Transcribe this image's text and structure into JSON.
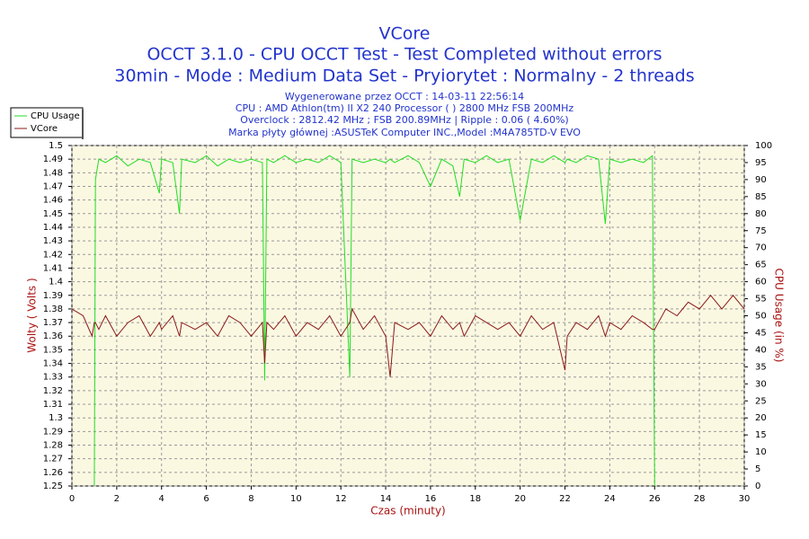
{
  "chart_data": {
    "type": "line",
    "title": "VCore",
    "subtitle": [
      "OCCT 3.1.0 - CPU OCCT Test - Test Completed without errors",
      "30min - Mode : Medium Data Set - Pryiorytet : Normalny - 2 threads"
    ],
    "info": [
      "Wygenerowane przez OCCT : 14-03-11 22:56:14",
      "CPU : AMD Athlon(tm) II X2 240 Processor (  ) 2800 MHz FSB 200MHz",
      "Overclock : 2812.42 MHz ; FSB 200.89MHz | Ripple : 0.06 ( 4.60%)",
      "Marka płyty głównej :ASUSTeK Computer INC.,Model :M4A785TD-V EVO"
    ],
    "xlabel": "Czas (minuty)",
    "ylabel": "Wolty ( Volts )",
    "y2label": "CPU Usage (in %)",
    "legend": "top-left",
    "grid": true,
    "xlim": [
      0,
      30
    ],
    "xticks": [
      0,
      2,
      4,
      6,
      8,
      10,
      12,
      14,
      16,
      18,
      20,
      22,
      24,
      26,
      28,
      30
    ],
    "ylim": [
      1.25,
      1.5
    ],
    "yticks": [
      1.25,
      1.26,
      1.27,
      1.28,
      1.29,
      1.3,
      1.31,
      1.32,
      1.33,
      1.34,
      1.35,
      1.36,
      1.37,
      1.38,
      1.39,
      1.4,
      1.41,
      1.42,
      1.43,
      1.44,
      1.45,
      1.46,
      1.47,
      1.48,
      1.49,
      1.5
    ],
    "y2lim": [
      0,
      100
    ],
    "y2ticks": [
      0,
      5,
      10,
      15,
      20,
      25,
      30,
      35,
      40,
      45,
      50,
      55,
      60,
      65,
      70,
      75,
      80,
      85,
      90,
      95,
      100
    ],
    "x": [
      0,
      0.5,
      0.9,
      1.0,
      1.05,
      1.2,
      1.5,
      2,
      2.5,
      3,
      3.5,
      3.9,
      4,
      4.5,
      4.8,
      4.9,
      5.5,
      6,
      6.5,
      7,
      7.5,
      8,
      8.5,
      8.6,
      8.7,
      9,
      9.5,
      10,
      10.5,
      11,
      11.5,
      12,
      12.4,
      12.5,
      13,
      13.5,
      14,
      14.2,
      14.4,
      15,
      15.5,
      16,
      16.5,
      17,
      17.3,
      17.5,
      18,
      18.5,
      19,
      19.5,
      20,
      20.5,
      21,
      21.5,
      22,
      22.1,
      22.5,
      23,
      23.5,
      23.8,
      24,
      24.5,
      25,
      25.5,
      25.9,
      26,
      26.5,
      27,
      27.5,
      28,
      28.5,
      29,
      29.5,
      30
    ],
    "series": [
      {
        "name": "CPU Usage",
        "color": "#22dd22",
        "axis": "y2",
        "values": [
          null,
          null,
          null,
          0,
          90,
          96,
          95,
          97,
          94,
          96,
          95,
          86,
          96,
          95,
          80,
          96,
          95,
          97,
          94,
          96,
          95,
          96,
          95,
          31,
          96,
          95,
          97,
          95,
          96,
          95,
          97,
          95,
          32,
          96,
          95,
          96,
          95,
          96,
          95,
          97,
          95,
          88,
          96,
          94,
          85,
          96,
          95,
          97,
          95,
          96,
          78,
          96,
          95,
          97,
          95,
          96,
          95,
          97,
          96,
          77,
          96,
          95,
          96,
          95,
          97,
          0,
          null,
          null,
          null,
          null,
          null,
          null,
          null,
          null
        ]
      },
      {
        "name": "VCore",
        "color": "#8b1a1a",
        "values": [
          1.38,
          1.375,
          1.36,
          1.37,
          1.37,
          1.365,
          1.375,
          1.36,
          1.37,
          1.375,
          1.36,
          1.37,
          1.365,
          1.375,
          1.36,
          1.37,
          1.365,
          1.37,
          1.36,
          1.375,
          1.37,
          1.36,
          1.37,
          1.34,
          1.37,
          1.365,
          1.375,
          1.36,
          1.37,
          1.365,
          1.375,
          1.36,
          1.37,
          1.38,
          1.365,
          1.375,
          1.36,
          1.33,
          1.37,
          1.365,
          1.37,
          1.36,
          1.375,
          1.365,
          1.37,
          1.36,
          1.375,
          1.37,
          1.365,
          1.37,
          1.36,
          1.375,
          1.365,
          1.37,
          1.335,
          1.36,
          1.37,
          1.365,
          1.375,
          1.36,
          1.37,
          1.365,
          1.375,
          1.37,
          1.365,
          1.365,
          1.38,
          1.375,
          1.385,
          1.38,
          1.39,
          1.38,
          1.39,
          1.38
        ]
      }
    ]
  }
}
